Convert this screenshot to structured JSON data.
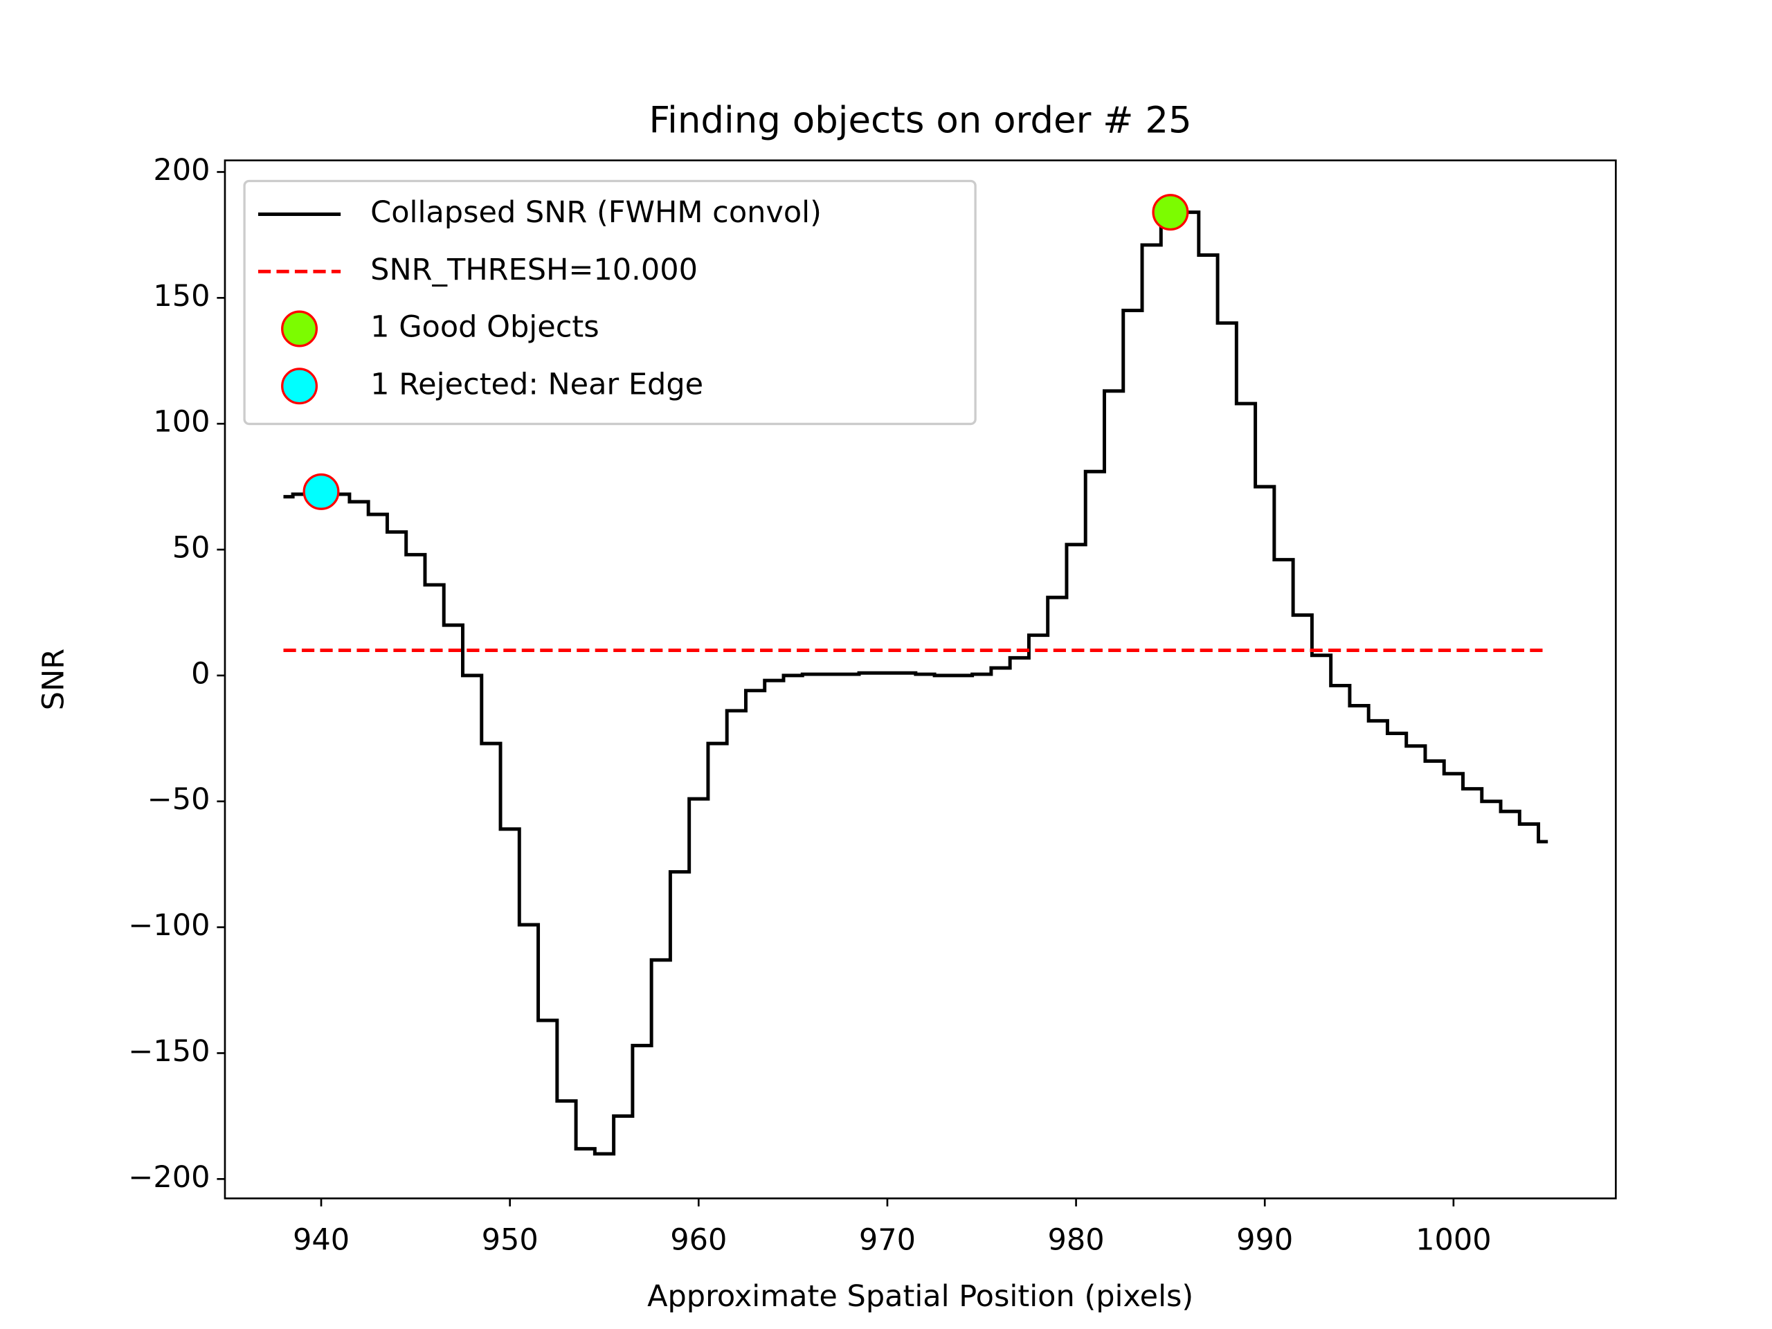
{
  "chart_data": {
    "type": "line",
    "title": "Finding objects on order # 25",
    "xlabel": "Approximate Spatial Position (pixels)",
    "ylabel": "SNR",
    "xlim": [
      934.9,
      1008.6
    ],
    "ylim": [
      -207.7,
      204.6
    ],
    "xticks": [
      940,
      950,
      960,
      970,
      980,
      990,
      1000
    ],
    "yticks": [
      {
        "value": -200,
        "label": "−200"
      },
      {
        "value": -150,
        "label": "−150"
      },
      {
        "value": -100,
        "label": "−100"
      },
      {
        "value": -50,
        "label": "−50"
      },
      0,
      50,
      100,
      150,
      200
    ],
    "legend": "upper left",
    "series": [
      {
        "name": "Collapsed SNR (FWHM convol)",
        "color": "#000000",
        "drawstyle": "steps-mid",
        "linestyle": "solid",
        "x": [
          938,
          939,
          940,
          941,
          942,
          943,
          944,
          945,
          946,
          947,
          948,
          949,
          950,
          951,
          952,
          953,
          954,
          955,
          956,
          957,
          958,
          959,
          960,
          961,
          962,
          963,
          964,
          965,
          966,
          967,
          968,
          969,
          970,
          971,
          972,
          973,
          974,
          975,
          976,
          977,
          978,
          979,
          980,
          981,
          982,
          983,
          984,
          985,
          986,
          987,
          988,
          989,
          990,
          991,
          992,
          993,
          994,
          995,
          996,
          997,
          998,
          999,
          1000,
          1001,
          1002,
          1003,
          1004,
          1005
        ],
        "values": [
          71,
          72,
          72,
          72,
          69,
          64,
          57,
          48,
          36,
          20,
          0,
          -27,
          -61,
          -99,
          -137,
          -169,
          -188,
          -190,
          -175,
          -147,
          -113,
          -78,
          -49,
          -27,
          -14,
          -6,
          -2,
          0,
          0.5,
          0.5,
          0.5,
          1,
          1,
          1,
          0.5,
          0,
          0,
          0.5,
          3,
          7,
          16,
          31,
          52,
          81,
          113,
          145,
          171,
          183,
          184,
          167,
          140,
          108,
          75,
          46,
          24,
          8,
          -4,
          -12,
          -18,
          -23,
          -28,
          -34,
          -39,
          -45,
          -50,
          -54,
          -59,
          -66
        ]
      },
      {
        "name": "SNR_THRESH=10.000",
        "color": "#ff0000",
        "linestyle": "dashed",
        "x": [
          938,
          1005
        ],
        "values": [
          10,
          10
        ]
      },
      {
        "name": "1 Good Objects",
        "color": "#7cfc00",
        "edgecolor": "#ff0000",
        "marker": "o",
        "x": [
          985
        ],
        "values": [
          184
        ]
      },
      {
        "name": "1 Rejected: Near Edge",
        "color": "#00ffff",
        "edgecolor": "#ff0000",
        "marker": "o",
        "x": [
          940
        ],
        "values": [
          73
        ]
      }
    ]
  }
}
